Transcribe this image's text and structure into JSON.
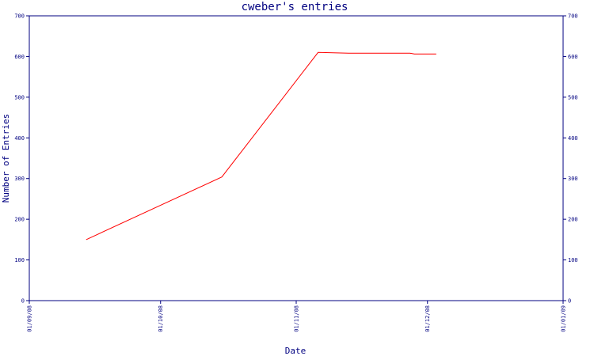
{
  "chart_data": {
    "type": "line",
    "title": "cweber's entries",
    "xlabel": "Date",
    "ylabel": "Number of Entries",
    "x_tick_labels": [
      "01/09/08",
      "01/10/08",
      "01/11/08",
      "01/12/08",
      "01/01/09"
    ],
    "x_ticks": [
      "2008-09-01",
      "2008-10-01",
      "2008-11-01",
      "2008-12-01",
      "2009-01-01"
    ],
    "xlim": [
      "2008-09-01",
      "2009-01-01"
    ],
    "ylim": [
      0,
      700
    ],
    "y_ticks": [
      0,
      100,
      200,
      300,
      400,
      500,
      600,
      700
    ],
    "grid": false,
    "series": [
      {
        "color": "#ff0000",
        "points": [
          {
            "x": "2008-09-14",
            "y": 150
          },
          {
            "x": "2008-10-15",
            "y": 304
          },
          {
            "x": "2008-11-06",
            "y": 610
          },
          {
            "x": "2008-11-13",
            "y": 608
          },
          {
            "x": "2008-11-27",
            "y": 608
          },
          {
            "x": "2008-11-28",
            "y": 606
          },
          {
            "x": "2008-12-03",
            "y": 606
          }
        ]
      }
    ]
  }
}
